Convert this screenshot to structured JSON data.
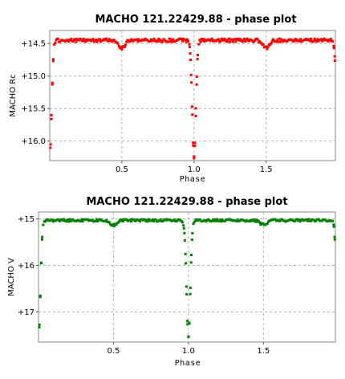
{
  "chart_data": [
    {
      "type": "scatter",
      "title": "MACHO 121.22429.88 - phase plot",
      "xlabel": "Phase",
      "ylabel": "MACHO Rc",
      "xlim": [
        0.0,
        1.98
      ],
      "ylim": [
        16.3,
        14.3
      ],
      "y_inverted": true,
      "grid": true,
      "x_ticks": [
        0.5,
        1.0,
        1.5
      ],
      "x_tick_labels": [
        "0.5",
        "1.0",
        "1.5"
      ],
      "y_ticks": [
        14.5,
        15.0,
        15.5,
        16.0
      ],
      "y_tick_labels": [
        "+14.5",
        "+15.0",
        "+15.5",
        "+16.0"
      ],
      "marker_color": "#ff0000",
      "light_curve_model": {
        "baseline_mag": 14.45,
        "primary_eclipse_phase": 0.0,
        "primary_eclipse_depth_mag": 1.8,
        "secondary_eclipse_phase": 0.5,
        "secondary_eclipse_depth_mag": 0.12,
        "period_repeats_at_phase": 1.0
      }
    },
    {
      "type": "scatter",
      "title": "MACHO 121.22429.88 - phase plot",
      "xlabel": "Phase",
      "ylabel": "MACHO V",
      "xlim": [
        0.0,
        1.98
      ],
      "ylim": [
        17.65,
        14.85
      ],
      "y_inverted": true,
      "grid": true,
      "x_ticks": [
        0.5,
        1.0,
        1.5
      ],
      "x_tick_labels": [
        "0.5",
        "1.0",
        "1.5"
      ],
      "y_ticks": [
        15,
        16,
        17
      ],
      "y_tick_labels": [
        "+15",
        "+16",
        "+17"
      ],
      "marker_color": "#008000",
      "light_curve_model": {
        "baseline_mag": 15.03,
        "primary_eclipse_phase": 0.0,
        "primary_eclipse_depth_mag": 2.5,
        "secondary_eclipse_phase": 0.5,
        "secondary_eclipse_depth_mag": 0.1,
        "period_repeats_at_phase": 1.0
      }
    }
  ]
}
